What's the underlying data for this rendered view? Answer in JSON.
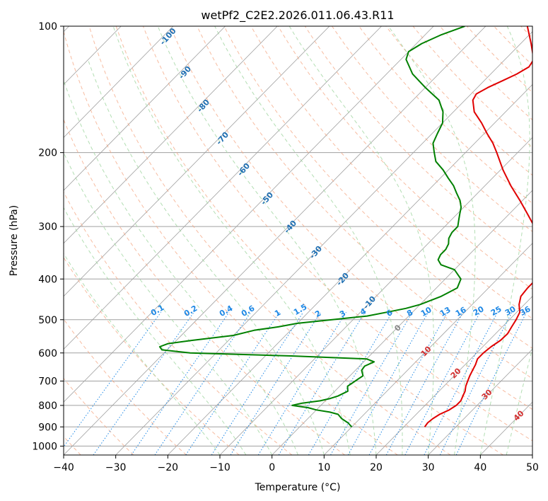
{
  "chart_data": {
    "type": "line",
    "subtype": "skew-T log-P",
    "title": "wetPf2_C2E2.2026.011.06.43.R11",
    "xlabel": "Temperature (°C)",
    "ylabel": "Pressure (hPa)",
    "xlim": [
      -40,
      50
    ],
    "ylim": [
      1050,
      100
    ],
    "y_scale": "log",
    "grid": true,
    "x_ticks": [
      "−40",
      "−30",
      "−20",
      "−10",
      "0",
      "10",
      "20",
      "30",
      "40",
      "50"
    ],
    "y_ticks": [
      "100",
      "200",
      "300",
      "400",
      "500",
      "600",
      "700",
      "800",
      "900",
      "1000"
    ],
    "series": [
      {
        "name": "",
        "color": "#e00000",
        "points": [
          [
            900,
            24
          ],
          [
            880,
            23.8
          ],
          [
            860,
            24
          ],
          [
            840,
            24.5
          ],
          [
            820,
            25.5
          ],
          [
            800,
            26
          ],
          [
            780,
            26
          ],
          [
            760,
            25.5
          ],
          [
            740,
            25
          ],
          [
            720,
            24.2
          ],
          [
            700,
            23.6
          ],
          [
            680,
            23
          ],
          [
            660,
            22.5
          ],
          [
            640,
            22
          ],
          [
            620,
            21.3
          ],
          [
            600,
            21.3
          ],
          [
            580,
            21.6
          ],
          [
            560,
            22.2
          ],
          [
            540,
            22.3
          ],
          [
            520,
            21.8
          ],
          [
            500,
            21.3
          ],
          [
            480,
            20.6
          ],
          [
            460,
            19
          ],
          [
            440,
            17.8
          ],
          [
            420,
            17.5
          ],
          [
            400,
            17.5
          ],
          [
            380,
            17
          ],
          [
            360,
            15.8
          ],
          [
            340,
            13.5
          ],
          [
            320,
            10.5
          ],
          [
            300,
            7.2
          ],
          [
            280,
            3.5
          ],
          [
            260,
            -0.5
          ],
          [
            240,
            -5
          ],
          [
            220,
            -9.5
          ],
          [
            200,
            -14
          ],
          [
            190,
            -16.5
          ],
          [
            180,
            -19.5
          ],
          [
            170,
            -22.5
          ],
          [
            160,
            -26
          ],
          [
            150,
            -28.5
          ],
          [
            145,
            -29
          ],
          [
            140,
            -28
          ],
          [
            135,
            -26.5
          ],
          [
            130,
            -25
          ],
          [
            125,
            -24
          ],
          [
            120,
            -24.5
          ],
          [
            110,
            -28
          ],
          [
            100,
            -32
          ]
        ]
      },
      {
        "name": "",
        "color": "#008000",
        "points": [
          [
            900,
            10
          ],
          [
            880,
            8.5
          ],
          [
            860,
            6.5
          ],
          [
            840,
            5
          ],
          [
            830,
            3
          ],
          [
            820,
            0
          ],
          [
            810,
            -2
          ],
          [
            800,
            -5.5
          ],
          [
            790,
            -4
          ],
          [
            780,
            -1
          ],
          [
            770,
            0.5
          ],
          [
            760,
            1.5
          ],
          [
            740,
            2.5
          ],
          [
            720,
            1.5
          ],
          [
            700,
            2
          ],
          [
            680,
            2.5
          ],
          [
            660,
            1.2
          ],
          [
            645,
            1
          ],
          [
            630,
            2
          ],
          [
            620,
            0
          ],
          [
            610,
            -15
          ],
          [
            600,
            -35
          ],
          [
            590,
            -41
          ],
          [
            580,
            -42
          ],
          [
            570,
            -41
          ],
          [
            560,
            -37
          ],
          [
            545,
            -30
          ],
          [
            530,
            -27
          ],
          [
            520,
            -23
          ],
          [
            510,
            -20
          ],
          [
            500,
            -14
          ],
          [
            490,
            -8
          ],
          [
            480,
            -5
          ],
          [
            470,
            -2
          ],
          [
            460,
            0
          ],
          [
            440,
            2.5
          ],
          [
            420,
            4
          ],
          [
            400,
            3
          ],
          [
            380,
            0
          ],
          [
            370,
            -3.5
          ],
          [
            360,
            -5
          ],
          [
            350,
            -5.5
          ],
          [
            340,
            -5.5
          ],
          [
            330,
            -6
          ],
          [
            320,
            -7
          ],
          [
            310,
            -7.5
          ],
          [
            300,
            -7.5
          ],
          [
            290,
            -8.5
          ],
          [
            280,
            -9.5
          ],
          [
            270,
            -10.5
          ],
          [
            260,
            -12
          ],
          [
            250,
            -14
          ],
          [
            240,
            -16
          ],
          [
            230,
            -18.5
          ],
          [
            220,
            -21
          ],
          [
            210,
            -24
          ],
          [
            200,
            -26
          ],
          [
            190,
            -28
          ],
          [
            180,
            -29
          ],
          [
            170,
            -30
          ],
          [
            160,
            -32
          ],
          [
            150,
            -35
          ],
          [
            140,
            -40
          ],
          [
            130,
            -45
          ],
          [
            120,
            -49
          ],
          [
            115,
            -50
          ],
          [
            110,
            -49
          ],
          [
            105,
            -47
          ],
          [
            100,
            -44
          ]
        ]
      }
    ],
    "dry_adiabat_labels": [
      {
        "text": "-100",
        "theta_c": -100
      },
      {
        "text": "-90",
        "theta_c": -90
      },
      {
        "text": "-80",
        "theta_c": -80
      },
      {
        "text": "-70",
        "theta_c": -70
      },
      {
        "text": "-60",
        "theta_c": -60
      },
      {
        "text": "-50",
        "theta_c": -50
      },
      {
        "text": "-40",
        "theta_c": -40
      },
      {
        "text": "-30",
        "theta_c": -30
      },
      {
        "text": "-20",
        "theta_c": -20
      },
      {
        "text": "-10",
        "theta_c": -10
      }
    ],
    "mixing_ratio_labels": [
      "0.1",
      "0.2",
      "0.4",
      "0.6",
      "1",
      "1.5",
      "2",
      "3",
      "4",
      "6",
      "8",
      "10",
      "13",
      "16",
      "20",
      "25",
      "30",
      "36"
    ],
    "mixing_ratio_values": [
      0.1,
      0.2,
      0.4,
      0.6,
      1,
      1.5,
      2,
      3,
      4,
      6,
      8,
      10,
      13,
      16,
      20,
      25,
      30,
      36
    ],
    "moist_adiabat_labels": [
      {
        "text": "0",
        "t_c": 0
      },
      {
        "text": "10",
        "t_c": 10
      },
      {
        "text": "20",
        "t_c": 20
      },
      {
        "text": "30",
        "t_c": 30
      },
      {
        "text": "40",
        "t_c": 40
      }
    ],
    "colors": {
      "temperature": "#e00000",
      "dewpoint": "#008000",
      "isotherm": "#a0a0a0",
      "isobar": "#a0a0a0",
      "dry_adiabat": "#f4a582",
      "moist_adiabat": "#a6d8a6",
      "mixing_ratio": "#1e88e5",
      "curve_brown": "#c8a878"
    }
  }
}
